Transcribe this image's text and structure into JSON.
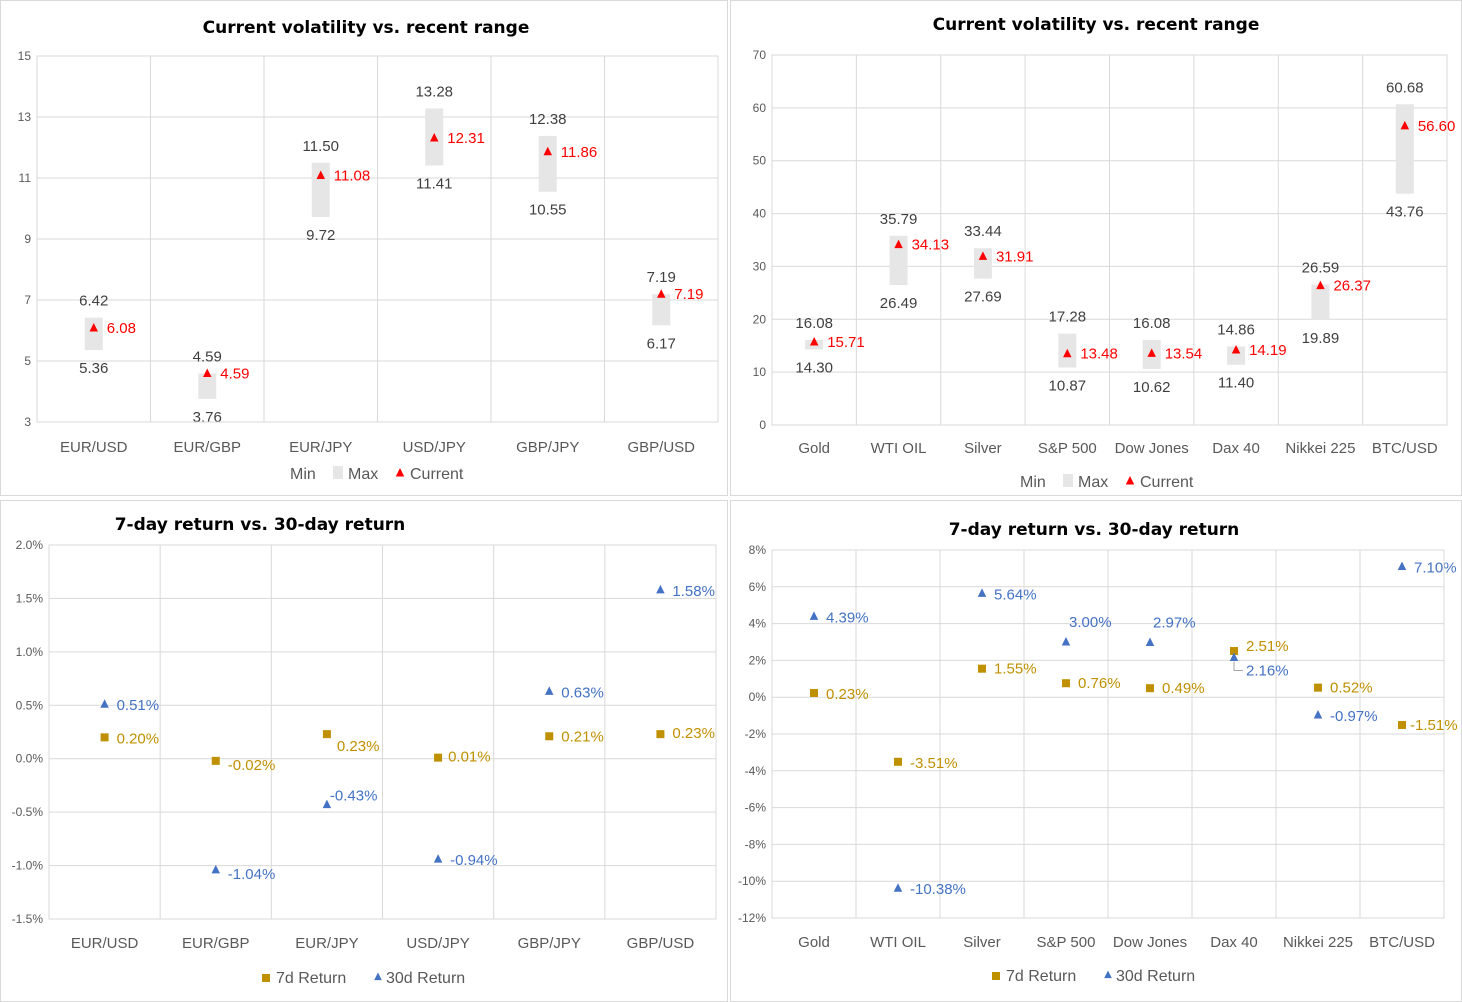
{
  "colors": {
    "range": "#e6e6e6",
    "current": "#ff0000",
    "label_dark": "#404040",
    "ret7": "#bf9000",
    "ret30": "#4472c4"
  },
  "chart_data": [
    {
      "id": "fx-vol",
      "type": "range",
      "title": "Current volatility vs. recent range",
      "categories": [
        "EUR/USD",
        "EUR/GBP",
        "EUR/JPY",
        "USD/JPY",
        "GBP/JPY",
        "GBP/USD"
      ],
      "series": [
        {
          "name": "Min",
          "values": [
            5.36,
            3.76,
            9.72,
            11.41,
            10.55,
            6.17
          ]
        },
        {
          "name": "Max",
          "values": [
            6.42,
            4.59,
            11.5,
            13.28,
            12.38,
            7.19
          ]
        },
        {
          "name": "Current",
          "values": [
            6.08,
            4.59,
            11.08,
            12.31,
            11.86,
            7.19
          ]
        }
      ],
      "value_labels": {
        "min": [
          "5.36",
          "3.76",
          "9.72",
          "11.41",
          "10.55",
          "6.17"
        ],
        "max": [
          "6.42",
          "4.59",
          "11.50",
          "13.28",
          "12.38",
          "7.19"
        ],
        "current": [
          "6.08",
          "4.59",
          "11.08",
          "12.31",
          "11.86",
          "7.19"
        ]
      },
      "ylim": [
        3,
        15
      ],
      "yticks": [
        3,
        5,
        7,
        9,
        11,
        13,
        15
      ],
      "ytick_labels": [
        "3",
        "5",
        "7",
        "9",
        "11",
        "13",
        "15"
      ],
      "xlabel": "",
      "ylabel": "",
      "grid": true,
      "legend": {
        "placement": "bottom",
        "entries": [
          "Min",
          "Max",
          "Current"
        ]
      }
    },
    {
      "id": "asset-vol",
      "type": "range",
      "title": "Current volatility vs. recent range",
      "categories": [
        "Gold",
        "WTI OIL",
        "Silver",
        "S&P 500",
        "Dow Jones",
        "Dax 40",
        "Nikkei 225",
        "BTC/USD"
      ],
      "series": [
        {
          "name": "Min",
          "values": [
            14.3,
            26.49,
            27.69,
            10.87,
            10.62,
            11.4,
            19.89,
            43.76
          ]
        },
        {
          "name": "Max",
          "values": [
            16.08,
            35.79,
            33.44,
            17.28,
            16.08,
            14.86,
            26.59,
            60.68
          ]
        },
        {
          "name": "Current",
          "values": [
            15.71,
            34.13,
            31.91,
            13.48,
            13.54,
            14.19,
            26.37,
            56.6
          ]
        }
      ],
      "value_labels": {
        "min": [
          "14.30",
          "26.49",
          "27.69",
          "10.87",
          "10.62",
          "11.40",
          "19.89",
          "43.76"
        ],
        "max": [
          "16.08",
          "35.79",
          "33.44",
          "17.28",
          "16.08",
          "14.86",
          "26.59",
          "60.68"
        ],
        "current": [
          "15.71",
          "34.13",
          "31.91",
          "13.48",
          "13.54",
          "14.19",
          "26.37",
          "56.60"
        ]
      },
      "ylim": [
        0,
        70
      ],
      "yticks": [
        0,
        10,
        20,
        30,
        40,
        50,
        60,
        70
      ],
      "ytick_labels": [
        "0",
        "10",
        "20",
        "30",
        "40",
        "50",
        "60",
        "70"
      ],
      "xlabel": "",
      "ylabel": "",
      "grid": true,
      "legend": {
        "placement": "bottom",
        "entries": [
          "Min",
          "Max",
          "Current"
        ]
      }
    },
    {
      "id": "fx-ret",
      "type": "scatter",
      "title": "7-day return vs. 30-day return",
      "categories": [
        "EUR/USD",
        "EUR/GBP",
        "EUR/JPY",
        "USD/JPY",
        "GBP/JPY",
        "GBP/USD"
      ],
      "series": [
        {
          "name": "7d Return",
          "values": [
            0.2,
            -0.02,
            0.23,
            0.01,
            0.21,
            0.23
          ],
          "labels": [
            "0.20%",
            "-0.02%",
            "0.23%",
            "0.01%",
            "0.21%",
            "0.23%"
          ]
        },
        {
          "name": "30d Return",
          "values": [
            0.51,
            -1.04,
            -0.43,
            -0.94,
            0.63,
            1.58
          ],
          "labels": [
            "0.51%",
            "-1.04%",
            "-0.43%",
            "-0.94%",
            "0.63%",
            "1.58%"
          ]
        }
      ],
      "unit": "%",
      "ylim": [
        -1.5,
        2.0
      ],
      "yticks": [
        -1.5,
        -1.0,
        -0.5,
        0.0,
        0.5,
        1.0,
        1.5,
        2.0
      ],
      "ytick_labels": [
        "-1.5%",
        "-1.0%",
        "-0.5%",
        "0.0%",
        "0.5%",
        "1.0%",
        "1.5%",
        "2.0%"
      ],
      "xlabel": "",
      "ylabel": "",
      "grid": true,
      "legend": {
        "placement": "bottom",
        "entries": [
          "7d Return",
          "30d Return"
        ]
      }
    },
    {
      "id": "asset-ret",
      "type": "scatter",
      "title": "7-day return vs. 30-day return",
      "categories": [
        "Gold",
        "WTI OIL",
        "Silver",
        "S&P 500",
        "Dow Jones",
        "Dax 40",
        "Nikkei 225",
        "BTC/USD"
      ],
      "series": [
        {
          "name": "7d Return",
          "values": [
            0.23,
            -3.51,
            1.55,
            0.76,
            0.49,
            2.51,
            0.52,
            -1.51
          ],
          "labels": [
            "0.23%",
            "-3.51%",
            "1.55%",
            "0.76%",
            "0.49%",
            "2.51%",
            "0.52%",
            "-1.51%"
          ]
        },
        {
          "name": "30d Return",
          "values": [
            4.39,
            -10.38,
            5.64,
            3.0,
            2.97,
            2.16,
            -0.97,
            7.1
          ],
          "labels": [
            "4.39%",
            "-10.38%",
            "5.64%",
            "3.00%",
            "2.97%",
            "2.16%",
            "-0.97%",
            "7.10%"
          ]
        }
      ],
      "unit": "%",
      "ylim": [
        -12,
        8
      ],
      "yticks": [
        -12,
        -10,
        -8,
        -6,
        -4,
        -2,
        0,
        2,
        4,
        6,
        8
      ],
      "ytick_labels": [
        "-12%",
        "-10%",
        "-8%",
        "-6%",
        "-4%",
        "-2%",
        "0%",
        "2%",
        "4%",
        "6%",
        "8%"
      ],
      "xlabel": "",
      "ylabel": "",
      "grid": true,
      "legend": {
        "placement": "bottom",
        "entries": [
          "7d Return",
          "30d Return"
        ]
      }
    }
  ]
}
